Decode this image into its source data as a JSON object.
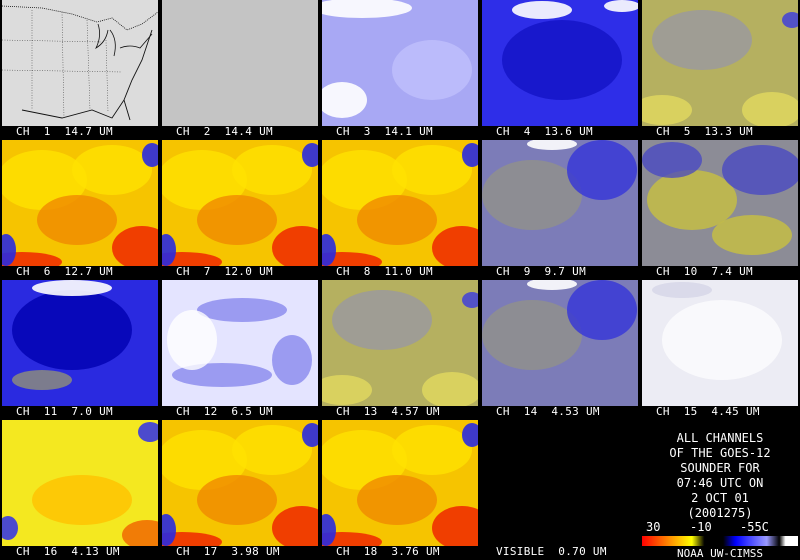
{
  "panels": [
    {
      "caption": "CH  1  14.7 UM",
      "palette": "map"
    },
    {
      "caption": "CH  2  14.4 UM",
      "palette": "grey"
    },
    {
      "caption": "CH  3  14.1 UM",
      "palette": "lavender"
    },
    {
      "caption": "CH  4  13.6 UM",
      "palette": "blue"
    },
    {
      "caption": "CH  5  13.3 UM",
      "palette": "olive"
    },
    {
      "caption": "CH  6  12.7 UM",
      "palette": "warm"
    },
    {
      "caption": "CH  7  12.0 UM",
      "palette": "warm"
    },
    {
      "caption": "CH  8  11.0 UM",
      "palette": "warm"
    },
    {
      "caption": "CH  9  9.7 UM",
      "palette": "slate"
    },
    {
      "caption": "CH  10  7.4 UM",
      "palette": "oliveblue"
    },
    {
      "caption": "CH  11  7.0 UM",
      "palette": "deepblue"
    },
    {
      "caption": "CH  12  6.5 UM",
      "palette": "pale"
    },
    {
      "caption": "CH  13  4.57 UM",
      "palette": "olive"
    },
    {
      "caption": "CH  14  4.53 UM",
      "palette": "slate"
    },
    {
      "caption": "CH  15  4.45 UM",
      "palette": "white"
    },
    {
      "caption": "CH  16  4.13 UM",
      "palette": "yellow"
    },
    {
      "caption": "CH  17  3.98 UM",
      "palette": "warm"
    },
    {
      "caption": "CH  18  3.76 UM",
      "palette": "warm"
    },
    {
      "caption": "VISIBLE  0.70 UM",
      "palette": "black"
    }
  ],
  "info": {
    "lines": [
      "ALL CHANNELS",
      "OF THE GOES-12",
      "SOUNDER FOR",
      "07:46 UTC ON",
      "2 OCT 01",
      "(2001275)"
    ],
    "scale_labels": [
      "30",
      "-10",
      "-55C"
    ],
    "credit": "NOAA UW-CIMSS"
  }
}
